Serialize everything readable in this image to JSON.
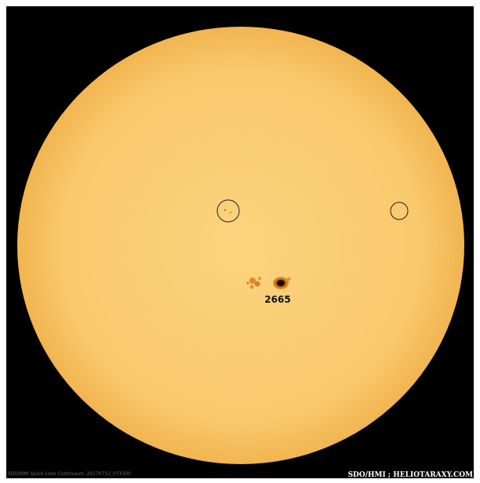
{
  "image": {
    "region_label": "2665",
    "credit": "SDO/HMI ; HELIOTARAXY.COM",
    "caption": "SDO/HMI Quick-Look Continuum: 20170712_071500"
  }
}
